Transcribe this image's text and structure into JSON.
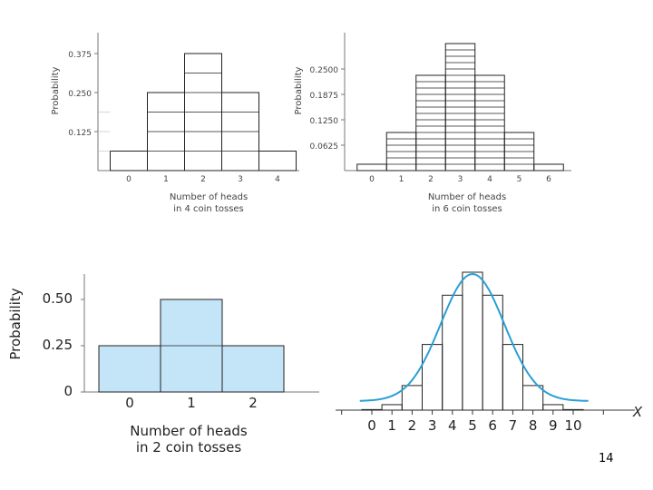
{
  "page_number": "14",
  "chart_data": [
    {
      "type": "bar",
      "panel": "top-left",
      "categories": [
        "0",
        "1",
        "2",
        "3",
        "4"
      ],
      "values": [
        0.0625,
        0.25,
        0.375,
        0.25,
        0.0625
      ],
      "yticks": [
        {
          "value": 0.125,
          "label": "0.125"
        },
        {
          "value": 0.25,
          "label": "0.250"
        },
        {
          "value": 0.375,
          "label": "0.375"
        }
      ],
      "ylim": [
        0,
        0.42
      ],
      "ylabel": "Probability",
      "xlabel": [
        "Number of heads",
        "in 4 coin tosses"
      ],
      "unit_step": 0.0625,
      "grid": false
    },
    {
      "type": "bar",
      "panel": "top-right",
      "categories": [
        "0",
        "1",
        "2",
        "3",
        "4",
        "5",
        "6"
      ],
      "values": [
        0.015625,
        0.09375,
        0.234375,
        0.3125,
        0.234375,
        0.09375,
        0.015625
      ],
      "yticks": [
        {
          "value": 0.0625,
          "label": "0.0625"
        },
        {
          "value": 0.125,
          "label": "0.1250"
        },
        {
          "value": 0.1875,
          "label": "0.1875"
        },
        {
          "value": 0.25,
          "label": "0.2500"
        }
      ],
      "ylim": [
        0,
        0.33
      ],
      "ylabel": "Probability",
      "xlabel": [
        "Number of heads",
        "in 6 coin tosses"
      ],
      "unit_step": 0.015625,
      "grid": false
    },
    {
      "type": "bar",
      "panel": "bottom-left",
      "categories": [
        "0",
        "1",
        "2"
      ],
      "values": [
        0.25,
        0.5,
        0.25
      ],
      "yticks": [
        {
          "value": 0,
          "label": "0"
        },
        {
          "value": 0.25,
          "label": "0.25"
        },
        {
          "value": 0.5,
          "label": "0.50"
        }
      ],
      "ylim": [
        0,
        0.6
      ],
      "ylabel": "Probability",
      "xlabel": [
        "Number of heads",
        "in 2 coin tosses"
      ],
      "unit_step": 0.25,
      "bar_color": "#c4e4f8",
      "grid": false
    },
    {
      "type": "bar",
      "panel": "bottom-right",
      "categories": [
        "0",
        "1",
        "2",
        "3",
        "4",
        "5",
        "6",
        "7",
        "8",
        "9",
        "10"
      ],
      "values": [
        0.001,
        0.0098,
        0.0439,
        0.1172,
        0.2051,
        0.2461,
        0.2051,
        0.1172,
        0.0439,
        0.0098,
        0.001
      ],
      "xlabel": "X",
      "curve": {
        "type": "normal",
        "mean": 5,
        "sd": 1.5811,
        "color": "#2a9fd6"
      },
      "grid": false
    }
  ]
}
